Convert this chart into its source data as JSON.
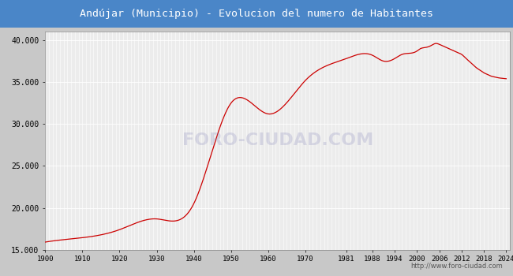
{
  "title": "Andújar (Municipio) - Evolucion del numero de Habitantes",
  "title_bg_color": "#4a86c8",
  "title_text_color": "white",
  "plot_bg_color": "#ececec",
  "grid_color": "white",
  "line_color": "#cc0000",
  "footer_text": "http://www.foro-ciudad.com",
  "footer_text_color": "#555555",
  "watermark": "FORO-CIUDAD.COM",
  "ylim": [
    15000,
    41000
  ],
  "yticks": [
    15000,
    20000,
    25000,
    30000,
    35000,
    40000
  ],
  "ytick_labels": [
    "15.000",
    "20.000",
    "25.000",
    "30.000",
    "35.000",
    "40.000"
  ],
  "xtick_labels": [
    "1900",
    "1910",
    "1920",
    "1930",
    "1940",
    "1950",
    "1960",
    "1970",
    "1981",
    "1988",
    "1994",
    "2000",
    "2006",
    "2012",
    "2018",
    "2024"
  ],
  "census_data": [
    [
      1900,
      15916
    ],
    [
      1910,
      16441
    ],
    [
      1920,
      17400
    ],
    [
      1930,
      18682
    ],
    [
      1940,
      20521
    ],
    [
      1950,
      32500
    ],
    [
      1960,
      31200
    ],
    [
      1970,
      35200
    ],
    [
      1981,
      37800
    ],
    [
      1988,
      38200
    ],
    [
      1991,
      37500
    ],
    [
      1994,
      37800
    ],
    [
      1996,
      38300
    ],
    [
      1999,
      38500
    ],
    [
      2000,
      38700
    ],
    [
      2001,
      39000
    ],
    [
      2002,
      39100
    ],
    [
      2003,
      39200
    ],
    [
      2004,
      39400
    ],
    [
      2005,
      39600
    ],
    [
      2006,
      39500
    ],
    [
      2007,
      39300
    ],
    [
      2008,
      39100
    ],
    [
      2009,
      38900
    ],
    [
      2010,
      38700
    ],
    [
      2011,
      38500
    ],
    [
      2012,
      38300
    ],
    [
      2013,
      37900
    ],
    [
      2014,
      37500
    ],
    [
      2015,
      37100
    ],
    [
      2016,
      36700
    ],
    [
      2017,
      36400
    ],
    [
      2018,
      36100
    ],
    [
      2019,
      35900
    ],
    [
      2020,
      35700
    ],
    [
      2021,
      35600
    ],
    [
      2022,
      35500
    ],
    [
      2023,
      35450
    ],
    [
      2024,
      35400
    ]
  ]
}
